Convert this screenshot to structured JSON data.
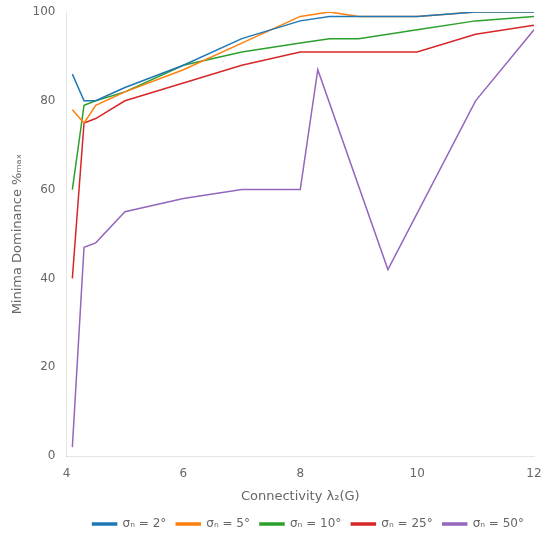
{
  "chart_data": {
    "type": "line",
    "xlabel": "Connectivity λ₂(G)",
    "ylabel": "Minima Dominance %ₘₐₓ",
    "xlim": [
      4,
      12
    ],
    "ylim": [
      0,
      100
    ],
    "xticks": [
      4,
      6,
      8,
      10,
      12
    ],
    "yticks": [
      0,
      20,
      40,
      60,
      80,
      100
    ],
    "grid": false,
    "legend": "lower right",
    "series": [
      {
        "name": "σₙ = 2°",
        "color": "#1f77b4",
        "x": [
          4.1,
          4.3,
          4.5,
          5.0,
          6.0,
          7.0,
          8.0,
          8.5,
          9.0,
          10.0,
          11.0,
          12.0
        ],
        "values": [
          86,
          80,
          80,
          83,
          88,
          94,
          98,
          99,
          99,
          99,
          100,
          100
        ]
      },
      {
        "name": "σₙ = 5°",
        "color": "#ff7f0e",
        "x": [
          4.1,
          4.3,
          4.5,
          5.0,
          6.0,
          7.0,
          8.0,
          8.5,
          9.0,
          10.0,
          11.0,
          12.0
        ],
        "values": [
          78,
          75,
          79,
          82,
          87,
          93,
          99,
          100,
          99,
          99,
          100,
          100
        ]
      },
      {
        "name": "σₙ = 10°",
        "color": "#2ca02c",
        "x": [
          4.1,
          4.3,
          4.5,
          5.0,
          6.0,
          7.0,
          8.0,
          8.5,
          9.0,
          10.0,
          11.0,
          12.0
        ],
        "values": [
          60,
          79,
          80,
          82,
          88,
          91,
          93,
          94,
          94,
          96,
          98,
          99
        ]
      },
      {
        "name": "σₙ = 25°",
        "color": "#d62728",
        "x": [
          4.1,
          4.3,
          4.5,
          5.0,
          6.0,
          7.0,
          8.0,
          8.5,
          9.0,
          10.0,
          11.0,
          12.0
        ],
        "values": [
          40,
          75,
          76,
          80,
          84,
          88,
          91,
          91,
          91,
          91,
          95,
          97
        ]
      },
      {
        "name": "σₙ = 50°",
        "color": "#9467bd",
        "x": [
          4.1,
          4.3,
          4.5,
          5.0,
          6.0,
          7.0,
          8.0,
          8.3,
          9.5,
          11.0,
          12.0
        ],
        "values": [
          2,
          47,
          48,
          55,
          58,
          60,
          60,
          87,
          42,
          80,
          96
        ]
      }
    ]
  }
}
